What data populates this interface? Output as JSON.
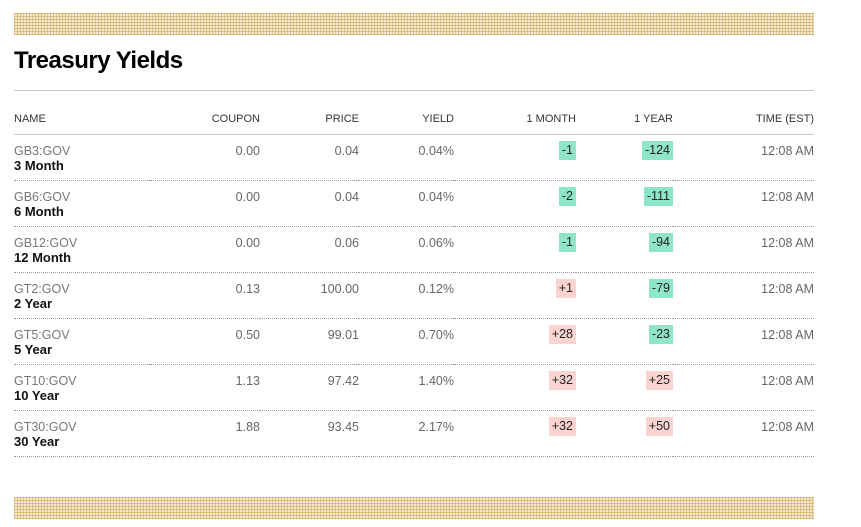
{
  "title": "Treasury Yields",
  "colors": {
    "negative_change_bg": "#8ee6c6",
    "positive_change_bg": "#fbd3d0",
    "pattern_bar": "#f4ead2"
  },
  "columns": {
    "name": "NAME",
    "coupon": "COUPON",
    "price": "PRICE",
    "yield": "YIELD",
    "one_month": "1 MONTH",
    "one_year": "1 YEAR",
    "time": "TIME (EST)"
  },
  "rows": [
    {
      "ticker": "GB3:GOV",
      "tenor": "3 Month",
      "coupon": "0.00",
      "price": "0.04",
      "yield": "0.04%",
      "one_month": "-1",
      "one_month_dir": "neg",
      "one_year": "-124",
      "one_year_dir": "neg",
      "time": "12:08 AM"
    },
    {
      "ticker": "GB6:GOV",
      "tenor": "6 Month",
      "coupon": "0.00",
      "price": "0.04",
      "yield": "0.04%",
      "one_month": "-2",
      "one_month_dir": "neg",
      "one_year": "-111",
      "one_year_dir": "neg",
      "time": "12:08 AM"
    },
    {
      "ticker": "GB12:GOV",
      "tenor": "12 Month",
      "coupon": "0.00",
      "price": "0.06",
      "yield": "0.06%",
      "one_month": "-1",
      "one_month_dir": "neg",
      "one_year": "-94",
      "one_year_dir": "neg",
      "time": "12:08 AM"
    },
    {
      "ticker": "GT2:GOV",
      "tenor": "2 Year",
      "coupon": "0.13",
      "price": "100.00",
      "yield": "0.12%",
      "one_month": "+1",
      "one_month_dir": "pos",
      "one_year": "-79",
      "one_year_dir": "neg",
      "time": "12:08 AM"
    },
    {
      "ticker": "GT5:GOV",
      "tenor": "5 Year",
      "coupon": "0.50",
      "price": "99.01",
      "yield": "0.70%",
      "one_month": "+28",
      "one_month_dir": "pos",
      "one_year": "-23",
      "one_year_dir": "neg",
      "time": "12:08 AM"
    },
    {
      "ticker": "GT10:GOV",
      "tenor": "10 Year",
      "coupon": "1.13",
      "price": "97.42",
      "yield": "1.40%",
      "one_month": "+32",
      "one_month_dir": "pos",
      "one_year": "+25",
      "one_year_dir": "pos",
      "time": "12:08 AM"
    },
    {
      "ticker": "GT30:GOV",
      "tenor": "30 Year",
      "coupon": "1.88",
      "price": "93.45",
      "yield": "2.17%",
      "one_month": "+32",
      "one_month_dir": "pos",
      "one_year": "+50",
      "one_year_dir": "pos",
      "time": "12:08 AM"
    }
  ]
}
